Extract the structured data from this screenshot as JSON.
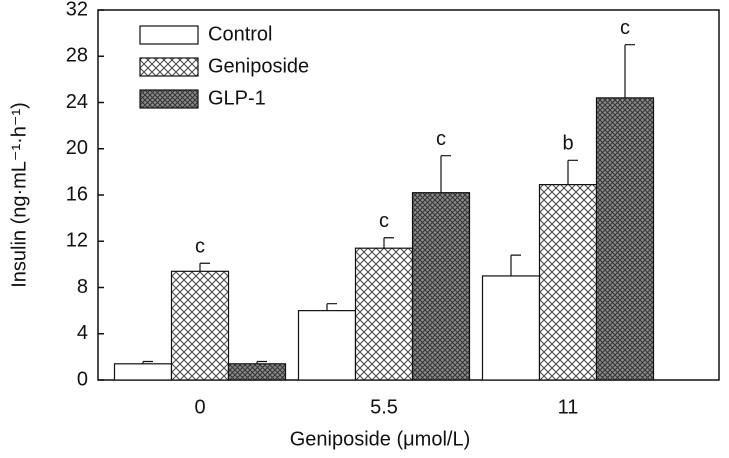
{
  "chart_data": {
    "type": "bar",
    "x_label": "Geniposide (μmol/L)",
    "y_label": "Insulin (ng·mL⁻¹·h⁻¹)",
    "categories": [
      "0",
      "5.5",
      "11"
    ],
    "series": [
      {
        "name": "Control",
        "color": "#ffffff",
        "pattern": "none",
        "values": [
          1.4,
          6.0,
          9.0
        ],
        "errors": [
          0.2,
          0.6,
          1.8
        ],
        "labels": [
          null,
          null,
          null
        ]
      },
      {
        "name": "Geniposide",
        "color": "#ffffff",
        "pattern": "crosshatch",
        "values": [
          9.4,
          11.4,
          16.9
        ],
        "errors": [
          0.7,
          0.9,
          2.1
        ],
        "labels": [
          "c",
          "c",
          "b"
        ]
      },
      {
        "name": "GLP-1",
        "color": "#8a8a8a",
        "pattern": "dense-crosshatch",
        "values": [
          1.4,
          16.2,
          24.4
        ],
        "errors": [
          0.2,
          3.2,
          4.6
        ],
        "labels": [
          null,
          "c",
          "c"
        ]
      }
    ],
    "ylim": [
      0,
      32
    ],
    "yticks": [
      0,
      4,
      8,
      12,
      16,
      20,
      24,
      28,
      32
    ],
    "legend": "upper-left"
  }
}
